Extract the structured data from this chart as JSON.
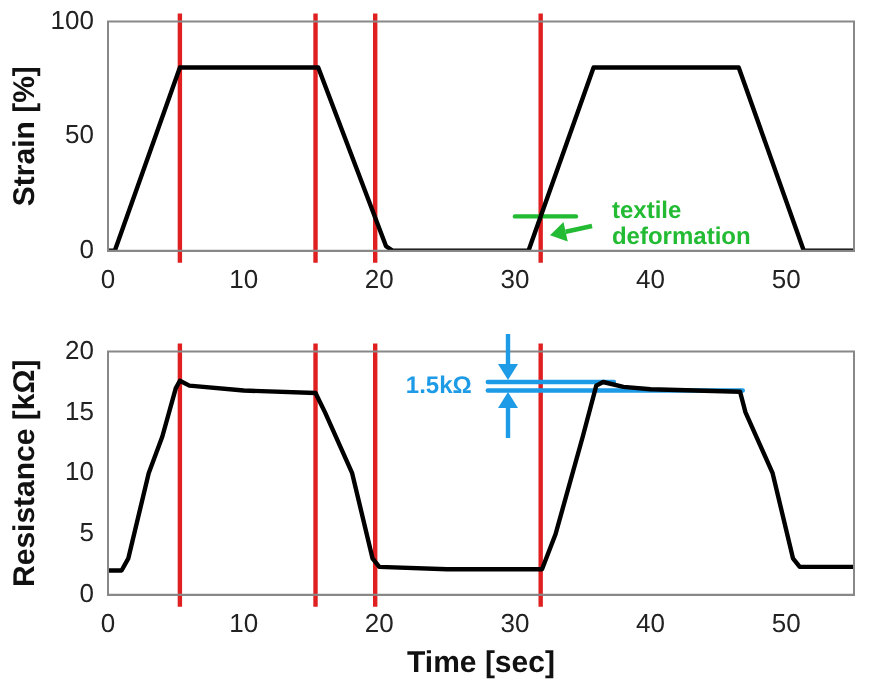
{
  "chart_data": [
    {
      "type": "line",
      "ylabel": "Strain [%]",
      "xlim": [
        0,
        55
      ],
      "xticks": [
        0,
        10,
        20,
        30,
        40,
        50
      ],
      "ylim": [
        0,
        100
      ],
      "yticks": [
        0,
        50,
        100
      ],
      "grid": false,
      "legend": false,
      "marker": "none",
      "series": [
        {
          "color": "#000000",
          "x": [
            0,
            0.5,
            5.3,
            15.5,
            20.5,
            21,
            31,
            35.8,
            46.5,
            51.3,
            55
          ],
          "values": [
            0,
            0,
            80,
            80,
            2,
            0,
            0,
            80,
            80,
            0,
            0
          ]
        },
        {
          "color": "#22bb33",
          "x": [
            30,
            34.5
          ],
          "values": [
            15,
            15
          ]
        }
      ],
      "ref_lines": [
        {
          "axis": "x",
          "value": 5.3,
          "color": "#e02020"
        },
        {
          "axis": "x",
          "value": 15.3,
          "color": "#e02020"
        },
        {
          "axis": "x",
          "value": 19.7,
          "color": "#e02020"
        },
        {
          "axis": "x",
          "value": 31.9,
          "color": "#e02020"
        }
      ],
      "annotations": [
        "textile deformation"
      ]
    },
    {
      "type": "line",
      "xlabel": "Time [sec]",
      "ylabel": "Resistance [kΩ]",
      "xlim": [
        0,
        55
      ],
      "xticks": [
        0,
        10,
        20,
        30,
        40,
        50
      ],
      "ylim": [
        0,
        20
      ],
      "yticks": [
        0,
        5,
        10,
        15,
        20
      ],
      "grid": false,
      "legend": false,
      "marker": "none",
      "series": [
        {
          "color": "#000000",
          "x": [
            0,
            1,
            1.5,
            3,
            4,
            5,
            5.3,
            6,
            10,
            15.3,
            16,
            18,
            19.5,
            20,
            25,
            32,
            33,
            35,
            36,
            36.5,
            38,
            40,
            46.6,
            47,
            49,
            50.5,
            51,
            55
          ],
          "values": [
            2,
            2,
            3,
            10,
            13,
            17,
            17.6,
            17.2,
            16.8,
            16.6,
            15,
            10,
            3,
            2.3,
            2.1,
            2.1,
            5,
            13,
            17.2,
            17.5,
            17.1,
            16.9,
            16.7,
            15,
            10,
            3,
            2.3,
            2.3
          ]
        },
        {
          "color": "#1e9be6",
          "x": [
            28,
            37.3
          ],
          "values": [
            17.5,
            17.5
          ]
        },
        {
          "color": "#1e9be6",
          "x": [
            28,
            46.8
          ],
          "values": [
            16.8,
            16.8
          ]
        }
      ],
      "ref_lines": [
        {
          "axis": "x",
          "value": 5.3,
          "color": "#e02020"
        },
        {
          "axis": "x",
          "value": 15.3,
          "color": "#e02020"
        },
        {
          "axis": "x",
          "value": 19.7,
          "color": "#e02020"
        },
        {
          "axis": "x",
          "value": 31.9,
          "color": "#e02020"
        }
      ],
      "annotations": [
        "1.5kΩ"
      ]
    }
  ]
}
